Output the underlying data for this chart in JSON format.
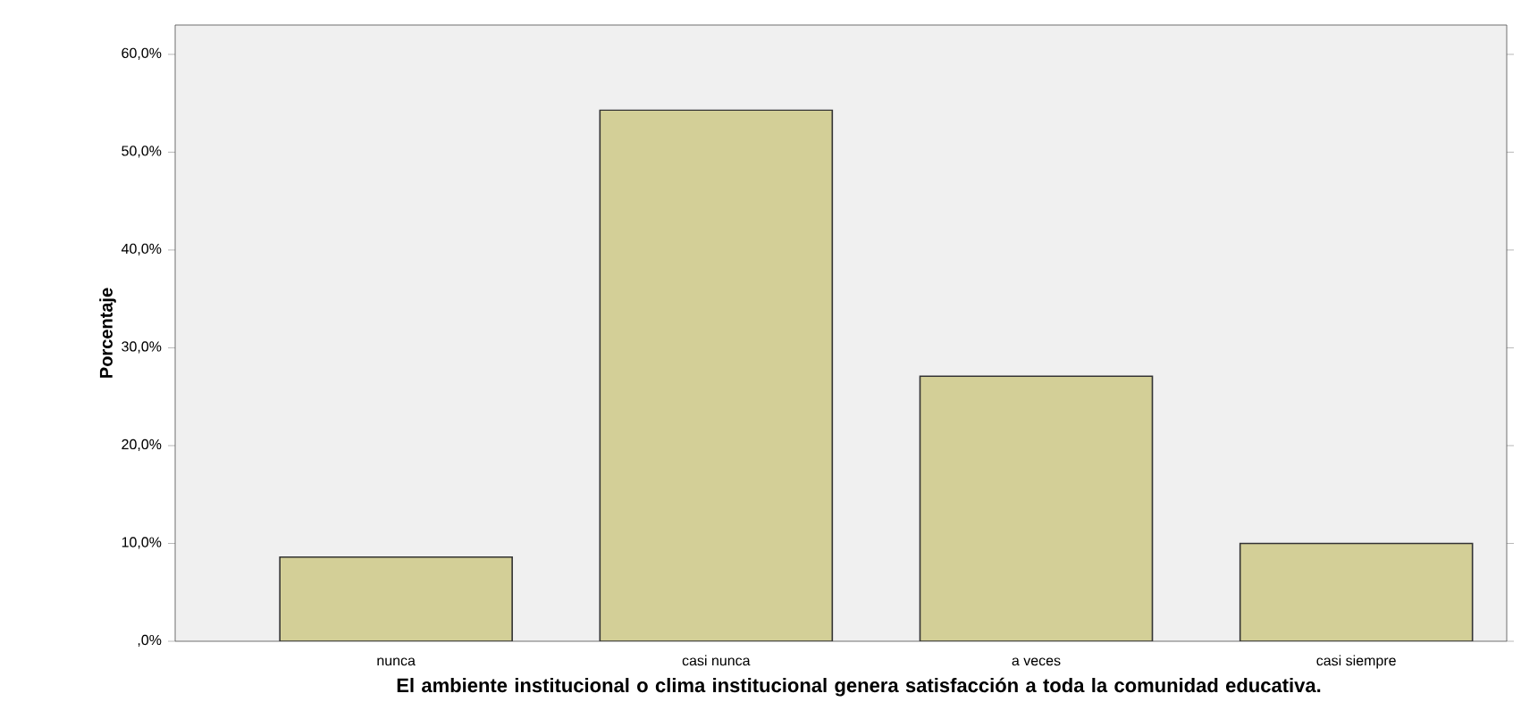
{
  "chart_data": {
    "type": "bar",
    "categories": [
      "nunca",
      "casi nunca",
      "a veces",
      "casi siempre"
    ],
    "values": [
      8.6,
      54.3,
      27.1,
      10.0
    ],
    "color": "#d3cf97",
    "ylim": [
      0,
      63
    ],
    "yticks": [
      {
        "value": 0,
        "label": ",0%"
      },
      {
        "value": 10,
        "label": "10,0%"
      },
      {
        "value": 20,
        "label": "20,0%"
      },
      {
        "value": 30,
        "label": "30,0%"
      },
      {
        "value": 40,
        "label": "40,0%"
      },
      {
        "value": 50,
        "label": "50,0%"
      },
      {
        "value": 60,
        "label": "60,0%"
      }
    ],
    "xlabel": "El ambiente institucional o clima institucional genera satisfacción a toda la comunidad educativa.",
    "ylabel": "Porcentaje",
    "grid": false
  }
}
